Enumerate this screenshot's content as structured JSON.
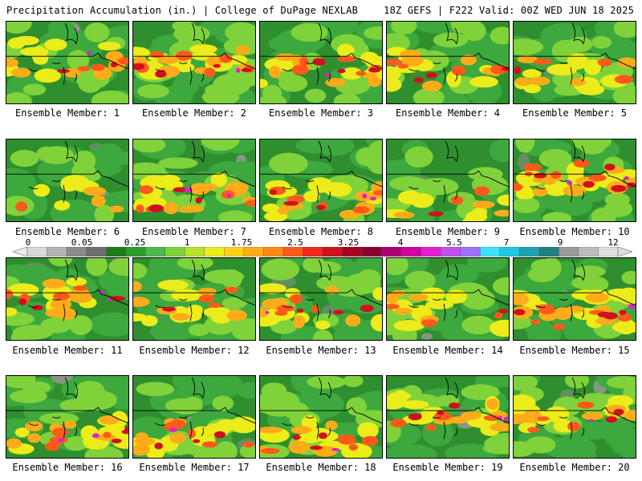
{
  "header": {
    "title_left": "Precipitation Accumulation (in.) | College of DuPage NEXLAB",
    "title_right": "18Z GEFS | F222 Valid: 00Z WED JUN 18 2025"
  },
  "colorbar": {
    "tick_labels": [
      "0",
      "0.05",
      "0.25",
      "1",
      "1.75",
      "2.5",
      "3.25",
      "4",
      "5.5",
      "7",
      "9",
      "12"
    ],
    "colors": [
      "#d8d8d8",
      "#b4b4b4",
      "#8c8c8c",
      "#6e6e6e",
      "#1f7a1f",
      "#2e9b2e",
      "#4db84d",
      "#7fd23a",
      "#b7e22a",
      "#ecec1a",
      "#ffd21a",
      "#ffab1a",
      "#ff8a1a",
      "#ff5a1a",
      "#f0281e",
      "#d0101e",
      "#a8001e",
      "#8a0030",
      "#b00070",
      "#d000a0",
      "#e020d0",
      "#c050f0",
      "#a070ff",
      "#40e0ff",
      "#20c8e0",
      "#20a0b0",
      "#208080",
      "#9a9a9a",
      "#bcbcbc",
      "#dedede"
    ]
  },
  "members": [
    {
      "label": "Ensemble Member: 1"
    },
    {
      "label": "Ensemble Member: 2"
    },
    {
      "label": "Ensemble Member: 3"
    },
    {
      "label": "Ensemble Member: 4"
    },
    {
      "label": "Ensemble Member: 5"
    },
    {
      "label": "Ensemble Member: 6"
    },
    {
      "label": "Ensemble Member: 7"
    },
    {
      "label": "Ensemble Member: 8"
    },
    {
      "label": "Ensemble Member: 9"
    },
    {
      "label": "Ensemble Member: 10"
    },
    {
      "label": "Ensemble Member: 11"
    },
    {
      "label": "Ensemble Member: 12"
    },
    {
      "label": "Ensemble Member: 13"
    },
    {
      "label": "Ensemble Member: 14"
    },
    {
      "label": "Ensemble Member: 15"
    },
    {
      "label": "Ensemble Member: 16"
    },
    {
      "label": "Ensemble Member: 17"
    },
    {
      "label": "Ensemble Member: 18"
    },
    {
      "label": "Ensemble Member: 19"
    },
    {
      "label": "Ensemble Member: 20"
    }
  ]
}
